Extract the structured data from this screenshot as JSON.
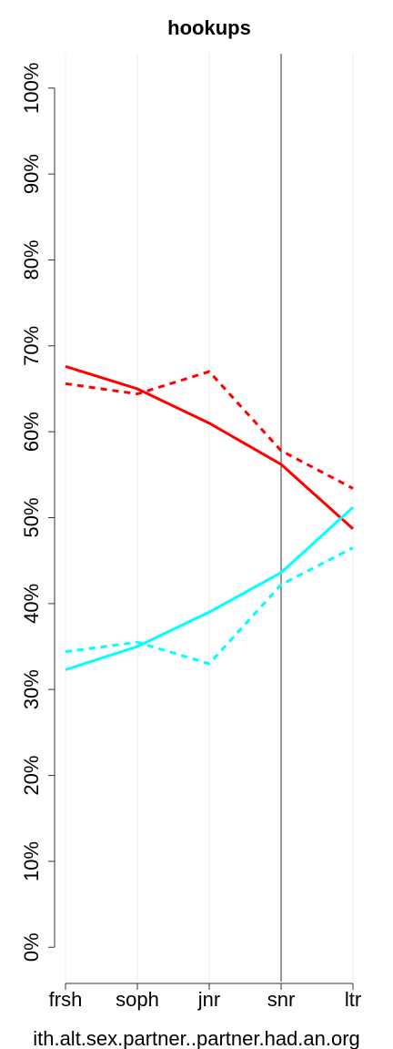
{
  "chart_data": {
    "type": "line",
    "title": "hookups",
    "x_label": "ith.alt.sex.partner..partner.had.an.org",
    "categories": [
      "frsh",
      "soph",
      "jnr",
      "snr",
      "ltr"
    ],
    "series": [
      {
        "color": "#ff0000",
        "dashed": false,
        "values": [
          67.6,
          65.0,
          61.0,
          56.2,
          48.7
        ]
      },
      {
        "color": "#ff0000",
        "dashed": true,
        "values": [
          65.6,
          64.4,
          67.0,
          57.8,
          53.4
        ]
      },
      {
        "color": "#00ffff",
        "dashed": false,
        "values": [
          32.3,
          35.0,
          39.0,
          43.6,
          51.2
        ]
      },
      {
        "color": "#00ffff",
        "dashed": true,
        "values": [
          34.4,
          35.5,
          33.0,
          42.2,
          46.5
        ]
      }
    ],
    "ylim": [
      -4,
      104
    ],
    "yticks": [
      {
        "value": 0,
        "label": "0%"
      },
      {
        "value": 10,
        "label": "10%"
      },
      {
        "value": 20,
        "label": "20%"
      },
      {
        "value": 30,
        "label": "30%"
      },
      {
        "value": 40,
        "label": "40%"
      },
      {
        "value": 50,
        "label": "50%"
      },
      {
        "value": 60,
        "label": "60%"
      },
      {
        "value": 70,
        "label": "70%"
      },
      {
        "value": 80,
        "label": "80%"
      },
      {
        "value": 90,
        "label": "90%"
      },
      {
        "value": 100,
        "label": "100%"
      }
    ],
    "grid": true,
    "highlight_category": "snr"
  }
}
